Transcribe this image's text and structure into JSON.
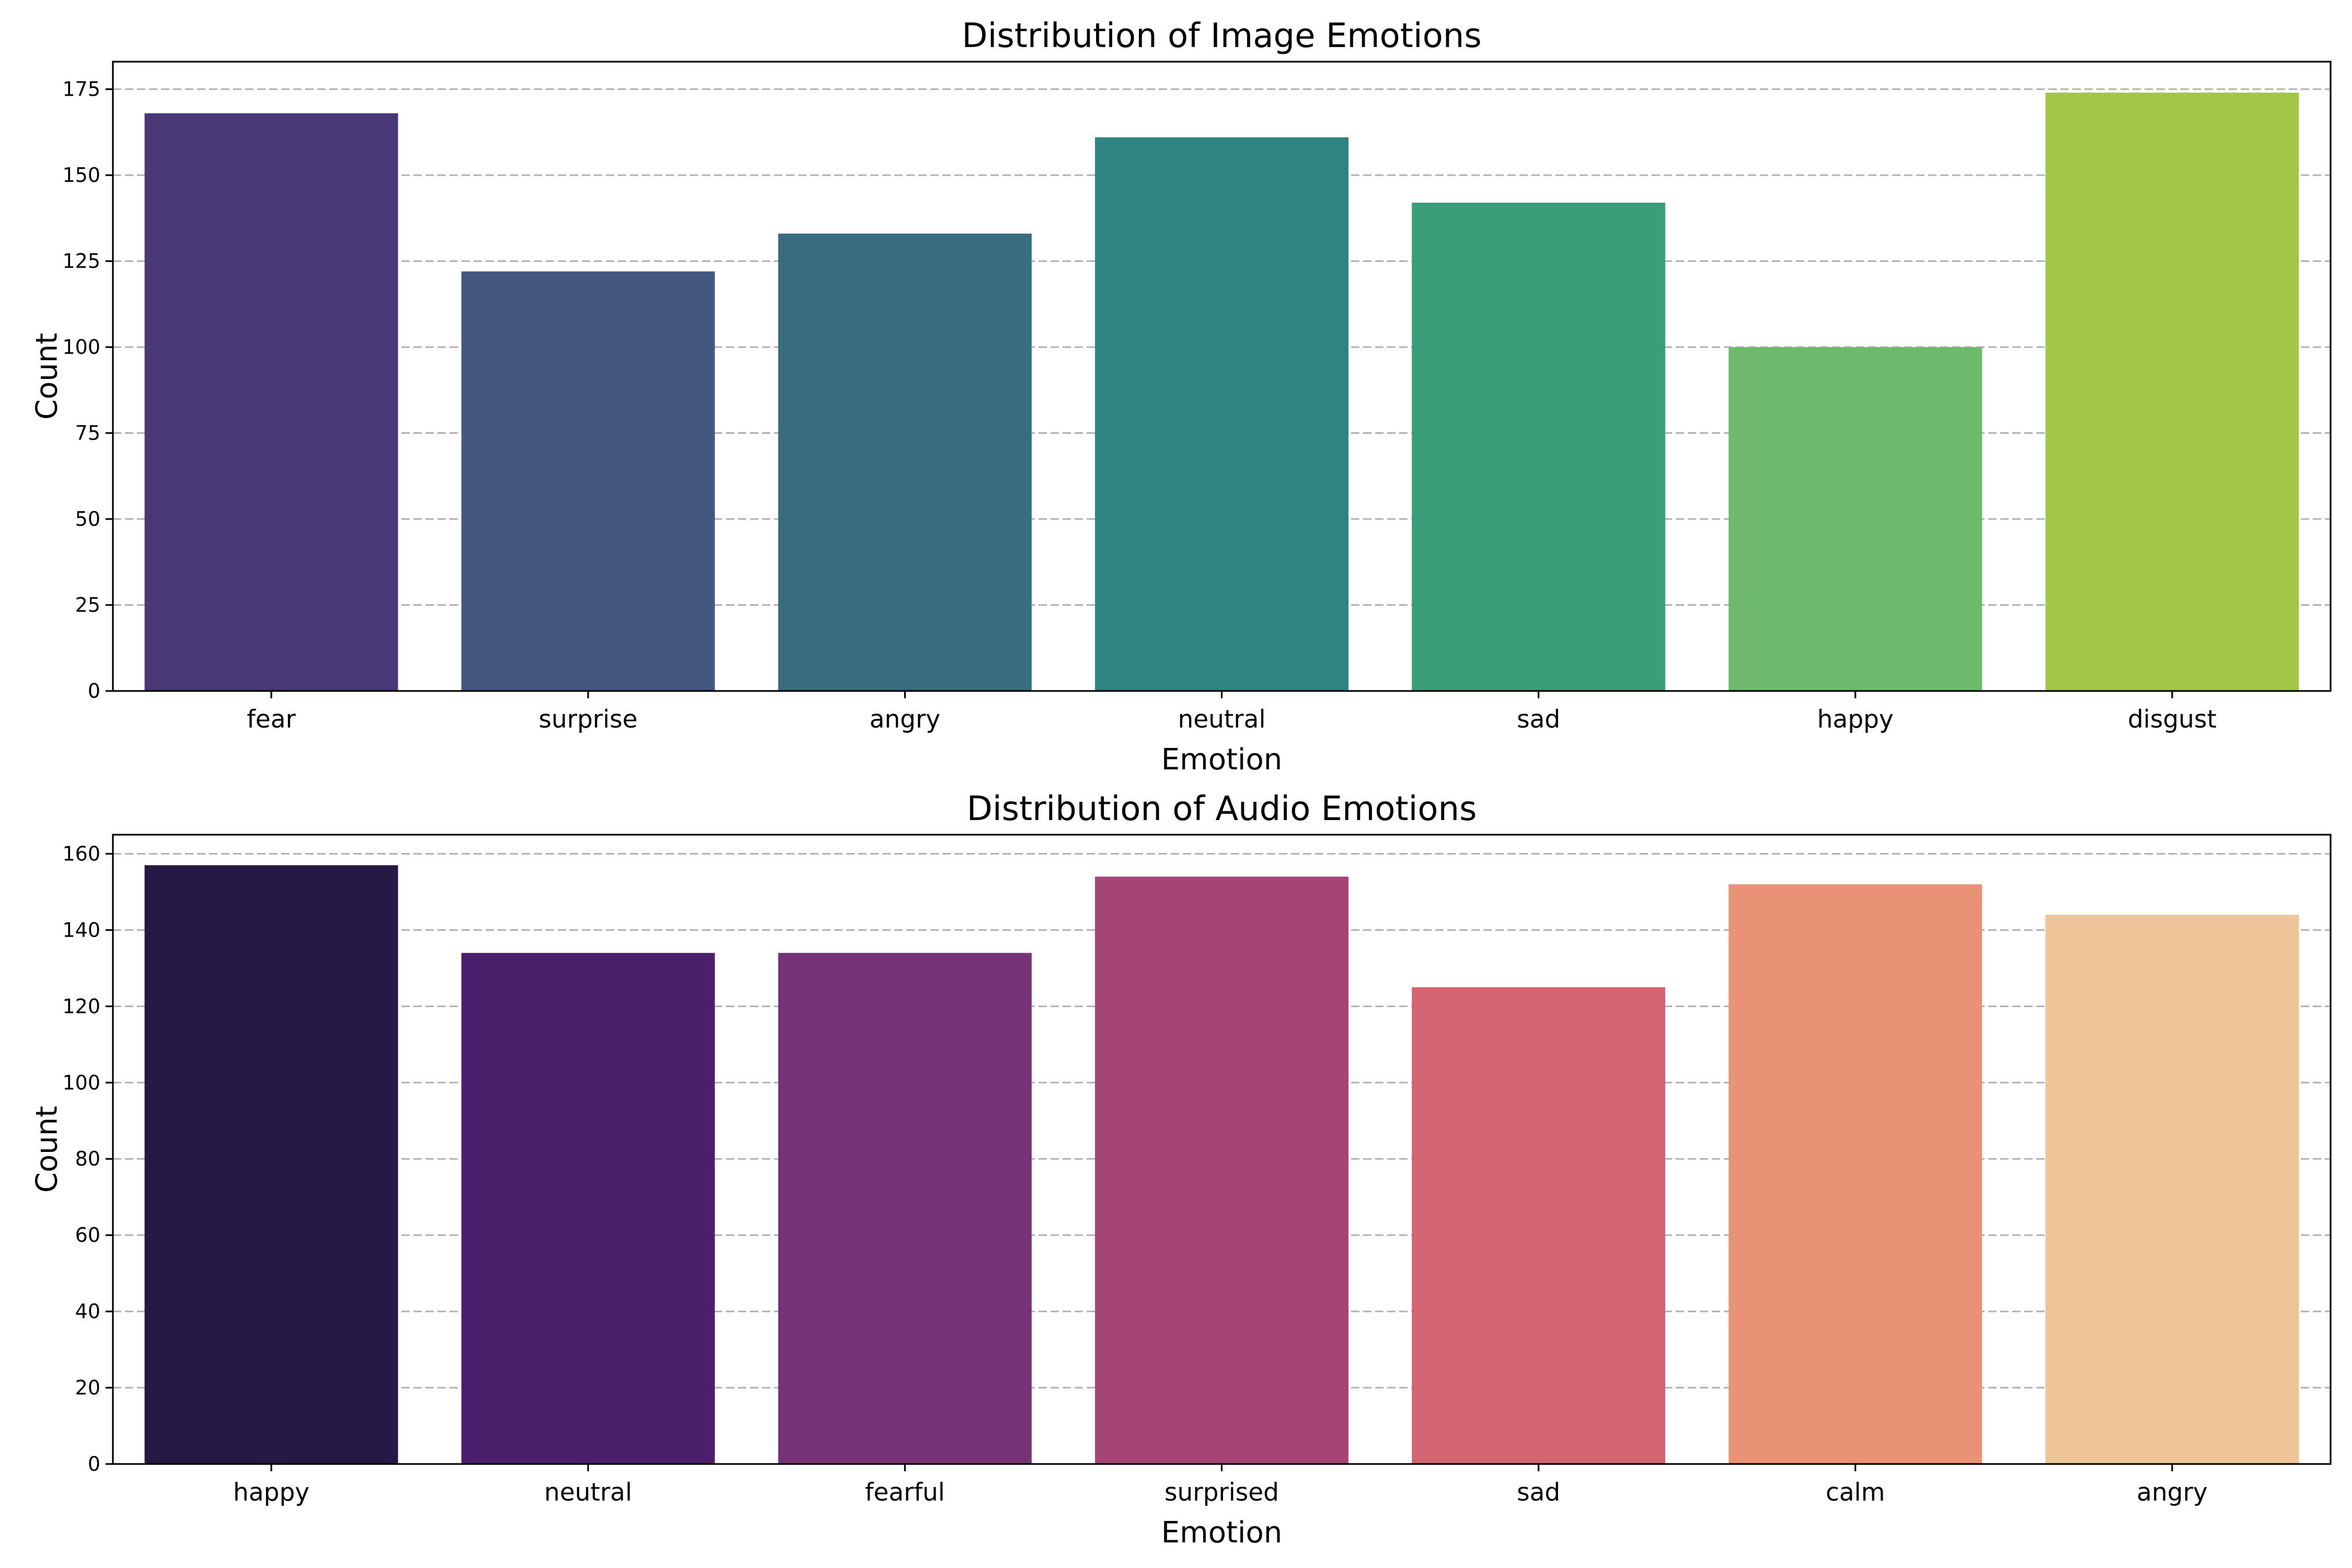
{
  "chart_data": [
    {
      "type": "bar",
      "title": "Distribution of Image Emotions",
      "xlabel": "Emotion",
      "ylabel": "Count",
      "categories": [
        "fear",
        "surprise",
        "angry",
        "neutral",
        "sad",
        "happy",
        "disgust"
      ],
      "values": [
        168,
        122,
        133,
        161,
        142,
        100,
        174
      ],
      "colors": [
        "#4a3776",
        "#44587f",
        "#386c7f",
        "#2e8380",
        "#3b9e7b",
        "#6cba6c",
        "#a2c747"
      ],
      "ylim": [
        0,
        183
      ],
      "yticks": [
        0,
        25,
        50,
        75,
        100,
        125,
        150,
        175
      ],
      "grid": "y-dashed"
    },
    {
      "type": "bar",
      "title": "Distribution of Audio Emotions",
      "xlabel": "Emotion",
      "ylabel": "Count",
      "categories": [
        "happy",
        "neutral",
        "fearful",
        "surprised",
        "sad",
        "calm",
        "angry"
      ],
      "values": [
        157,
        134,
        134,
        154,
        125,
        152,
        144
      ],
      "colors": [
        "#221a42",
        "#4c1e6b",
        "#753277",
        "#a54576",
        "#d46570",
        "#e89375",
        "#efc496"
      ],
      "ylim": [
        0,
        165
      ],
      "yticks": [
        0,
        20,
        40,
        60,
        80,
        100,
        120,
        140,
        160
      ],
      "grid": "y-dashed"
    }
  ]
}
